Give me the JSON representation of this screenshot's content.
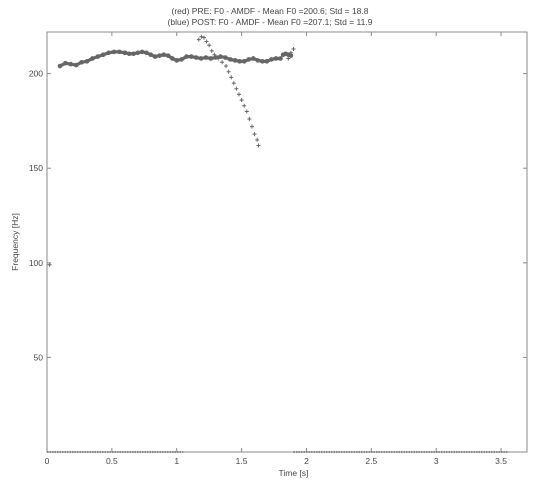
{
  "chart_data": {
    "type": "scatter",
    "title_lines": [
      "(red) PRE: F0 - AMDF - Mean F0 =200.6; Std = 18.8",
      "(blue) POST: F0 - AMDF - Mean F0 =207.1; Std = 11.9"
    ],
    "xlabel": "Time [s]",
    "ylabel": "Frequency [Hz]",
    "xlim": [
      0,
      3.7
    ],
    "ylim": [
      0,
      222
    ],
    "xticks": [
      0,
      0.5,
      1,
      1.5,
      2,
      2.5,
      3,
      3.5
    ],
    "xtick_labels": [
      "0",
      "0.5",
      "1",
      "1.5",
      "2",
      "2.5",
      "3",
      "3.5"
    ],
    "yticks": [
      50,
      100,
      150,
      200
    ],
    "ytick_labels": [
      "50",
      "100",
      "150",
      "200"
    ],
    "grid": false,
    "series": [
      {
        "name": "PRE",
        "color": "#666666",
        "segments": [
          {
            "x0": 0.1,
            "x1": 0.6,
            "y": [
              204,
              205.5,
              205,
              204.5,
              206,
              206.5,
              208,
              209,
              210,
              211,
              211.5,
              211.5,
              211
            ]
          },
          {
            "x0": 0.6,
            "x1": 1.0,
            "y": [
              211,
              210.5,
              210.5,
              211,
              211.5,
              211,
              210,
              209,
              209.5,
              210,
              209.5,
              208,
              207
            ]
          },
          {
            "x0": 1.0,
            "x1": 1.45,
            "y": [
              207,
              207.5,
              209,
              209,
              208.5,
              208,
              208.5,
              208,
              208.5,
              209,
              208.5,
              207.5,
              207
            ]
          },
          {
            "x0": 1.45,
            "x1": 1.8,
            "y": [
              207,
              206.5,
              206.5,
              207.5,
              208,
              207,
              206.5,
              206.5,
              207.5,
              208,
              208
            ]
          },
          {
            "x0": 1.82,
            "x1": 1.88,
            "y": [
              210,
              210.5,
              210,
              209.5
            ]
          }
        ],
        "baseline": {
          "x0": 0.0,
          "x1": 1.05,
          "y": 0
        }
      },
      {
        "name": "POST",
        "color": "#666666",
        "points": [
          [
            0.02,
            99
          ],
          [
            1.17,
            218
          ],
          [
            1.19,
            219.5
          ],
          [
            1.21,
            219
          ],
          [
            1.23,
            217
          ],
          [
            1.25,
            215
          ],
          [
            1.27,
            212
          ],
          [
            1.29,
            210
          ],
          [
            1.32,
            208
          ],
          [
            1.35,
            206
          ],
          [
            1.38,
            204
          ],
          [
            1.4,
            201
          ],
          [
            1.42,
            198
          ],
          [
            1.44,
            195
          ],
          [
            1.46,
            192
          ],
          [
            1.48,
            189
          ],
          [
            1.5,
            186
          ],
          [
            1.52,
            183
          ],
          [
            1.54,
            180
          ],
          [
            1.56,
            176
          ],
          [
            1.58,
            172
          ],
          [
            1.6,
            168
          ],
          [
            1.62,
            165
          ],
          [
            1.63,
            162
          ],
          [
            1.86,
            208
          ],
          [
            1.88,
            211
          ],
          [
            1.9,
            213
          ]
        ],
        "baseline": {
          "x0": 1.9,
          "x1": 3.55,
          "y": 0
        }
      }
    ]
  }
}
